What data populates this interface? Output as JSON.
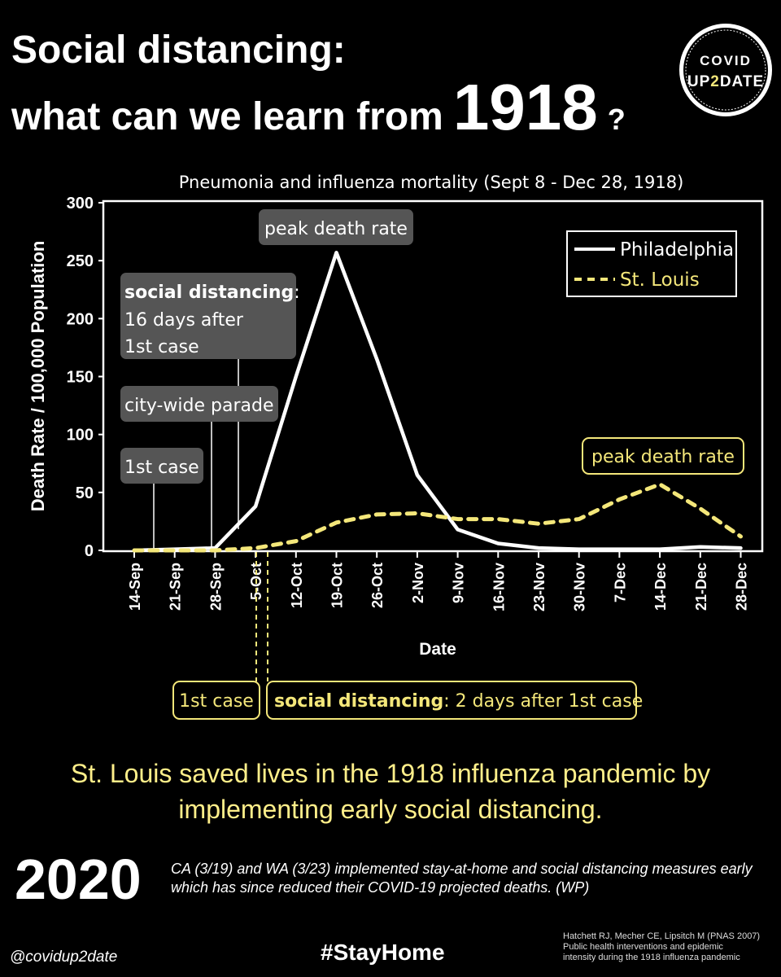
{
  "header": {
    "line1": "Social distancing:",
    "line2_pre": "what can we learn from",
    "line2_year": "1918",
    "line2_q": "?"
  },
  "logo": {
    "line1": "COVID",
    "line2_a": "UP",
    "line2_b": "2",
    "line2_c": "DATE",
    "icon": "covid-up2date-logo"
  },
  "colors": {
    "philadelphia": "#ffffff",
    "stlouis": "#f4e77a",
    "highlight": "#ffef8a",
    "callout_gray": "#555555"
  },
  "chart_data": {
    "type": "line",
    "title": "Pneumonia and influenza mortality (Sept 8 - Dec 28, 1918)",
    "xlabel": "Date",
    "ylabel": "Death Rate / 100,000 Population",
    "ylim": [
      0,
      300
    ],
    "yticks": [
      "0",
      "50",
      "100",
      "150",
      "200",
      "250",
      "300"
    ],
    "categories": [
      "14-Sep",
      "21-Sep",
      "28-Sep",
      "5-Oct",
      "12-Oct",
      "19-Oct",
      "26-Oct",
      "2-Nov",
      "9-Nov",
      "16-Nov",
      "23-Nov",
      "30-Nov",
      "7-Dec",
      "14-Dec",
      "21-Dec",
      "28-Dec"
    ],
    "legend_position": "top-right",
    "series": [
      {
        "name": "Philadelphia",
        "style": "solid",
        "values": [
          0,
          1,
          2,
          38,
          150,
          257,
          165,
          65,
          18,
          6,
          2,
          1,
          1,
          1,
          3,
          2
        ]
      },
      {
        "name": "St. Louis",
        "style": "dashed",
        "values": [
          0,
          0,
          0,
          2,
          8,
          24,
          31,
          32,
          27,
          27,
          23,
          27,
          44,
          57,
          36,
          12
        ]
      }
    ],
    "annotations": {
      "philly_peak": "peak death rate",
      "philly_sd_bold": "social distancing",
      "philly_sd_colon": ":",
      "philly_sd_rest1": "16 days after",
      "philly_sd_rest2": "1st case",
      "philly_parade": "city-wide parade",
      "philly_first": "1st case",
      "stl_peak": "peak death rate",
      "stl_first": "1st case",
      "stl_sd_bold": "social distancing",
      "stl_sd_rest": ": 2 days after 1st case"
    }
  },
  "conclusion": "St. Louis saved lives in the 1918 influenza pandemic by implementing early social distancing.",
  "year2020": "2020",
  "note": "CA (3/19) and WA (3/23) implemented stay-at-home and social distancing measures early which has since reduced their COVID-19 projected deaths. (WP)",
  "handle": "@covidup2date",
  "hashtag": "#StayHome",
  "citation": {
    "line1": "Hatchett RJ, Mecher CE, Lipsitch M (PNAS 2007)",
    "line2": "Public health interventions and epidemic",
    "line3": "intensity during the 1918 influenza pandemic"
  }
}
